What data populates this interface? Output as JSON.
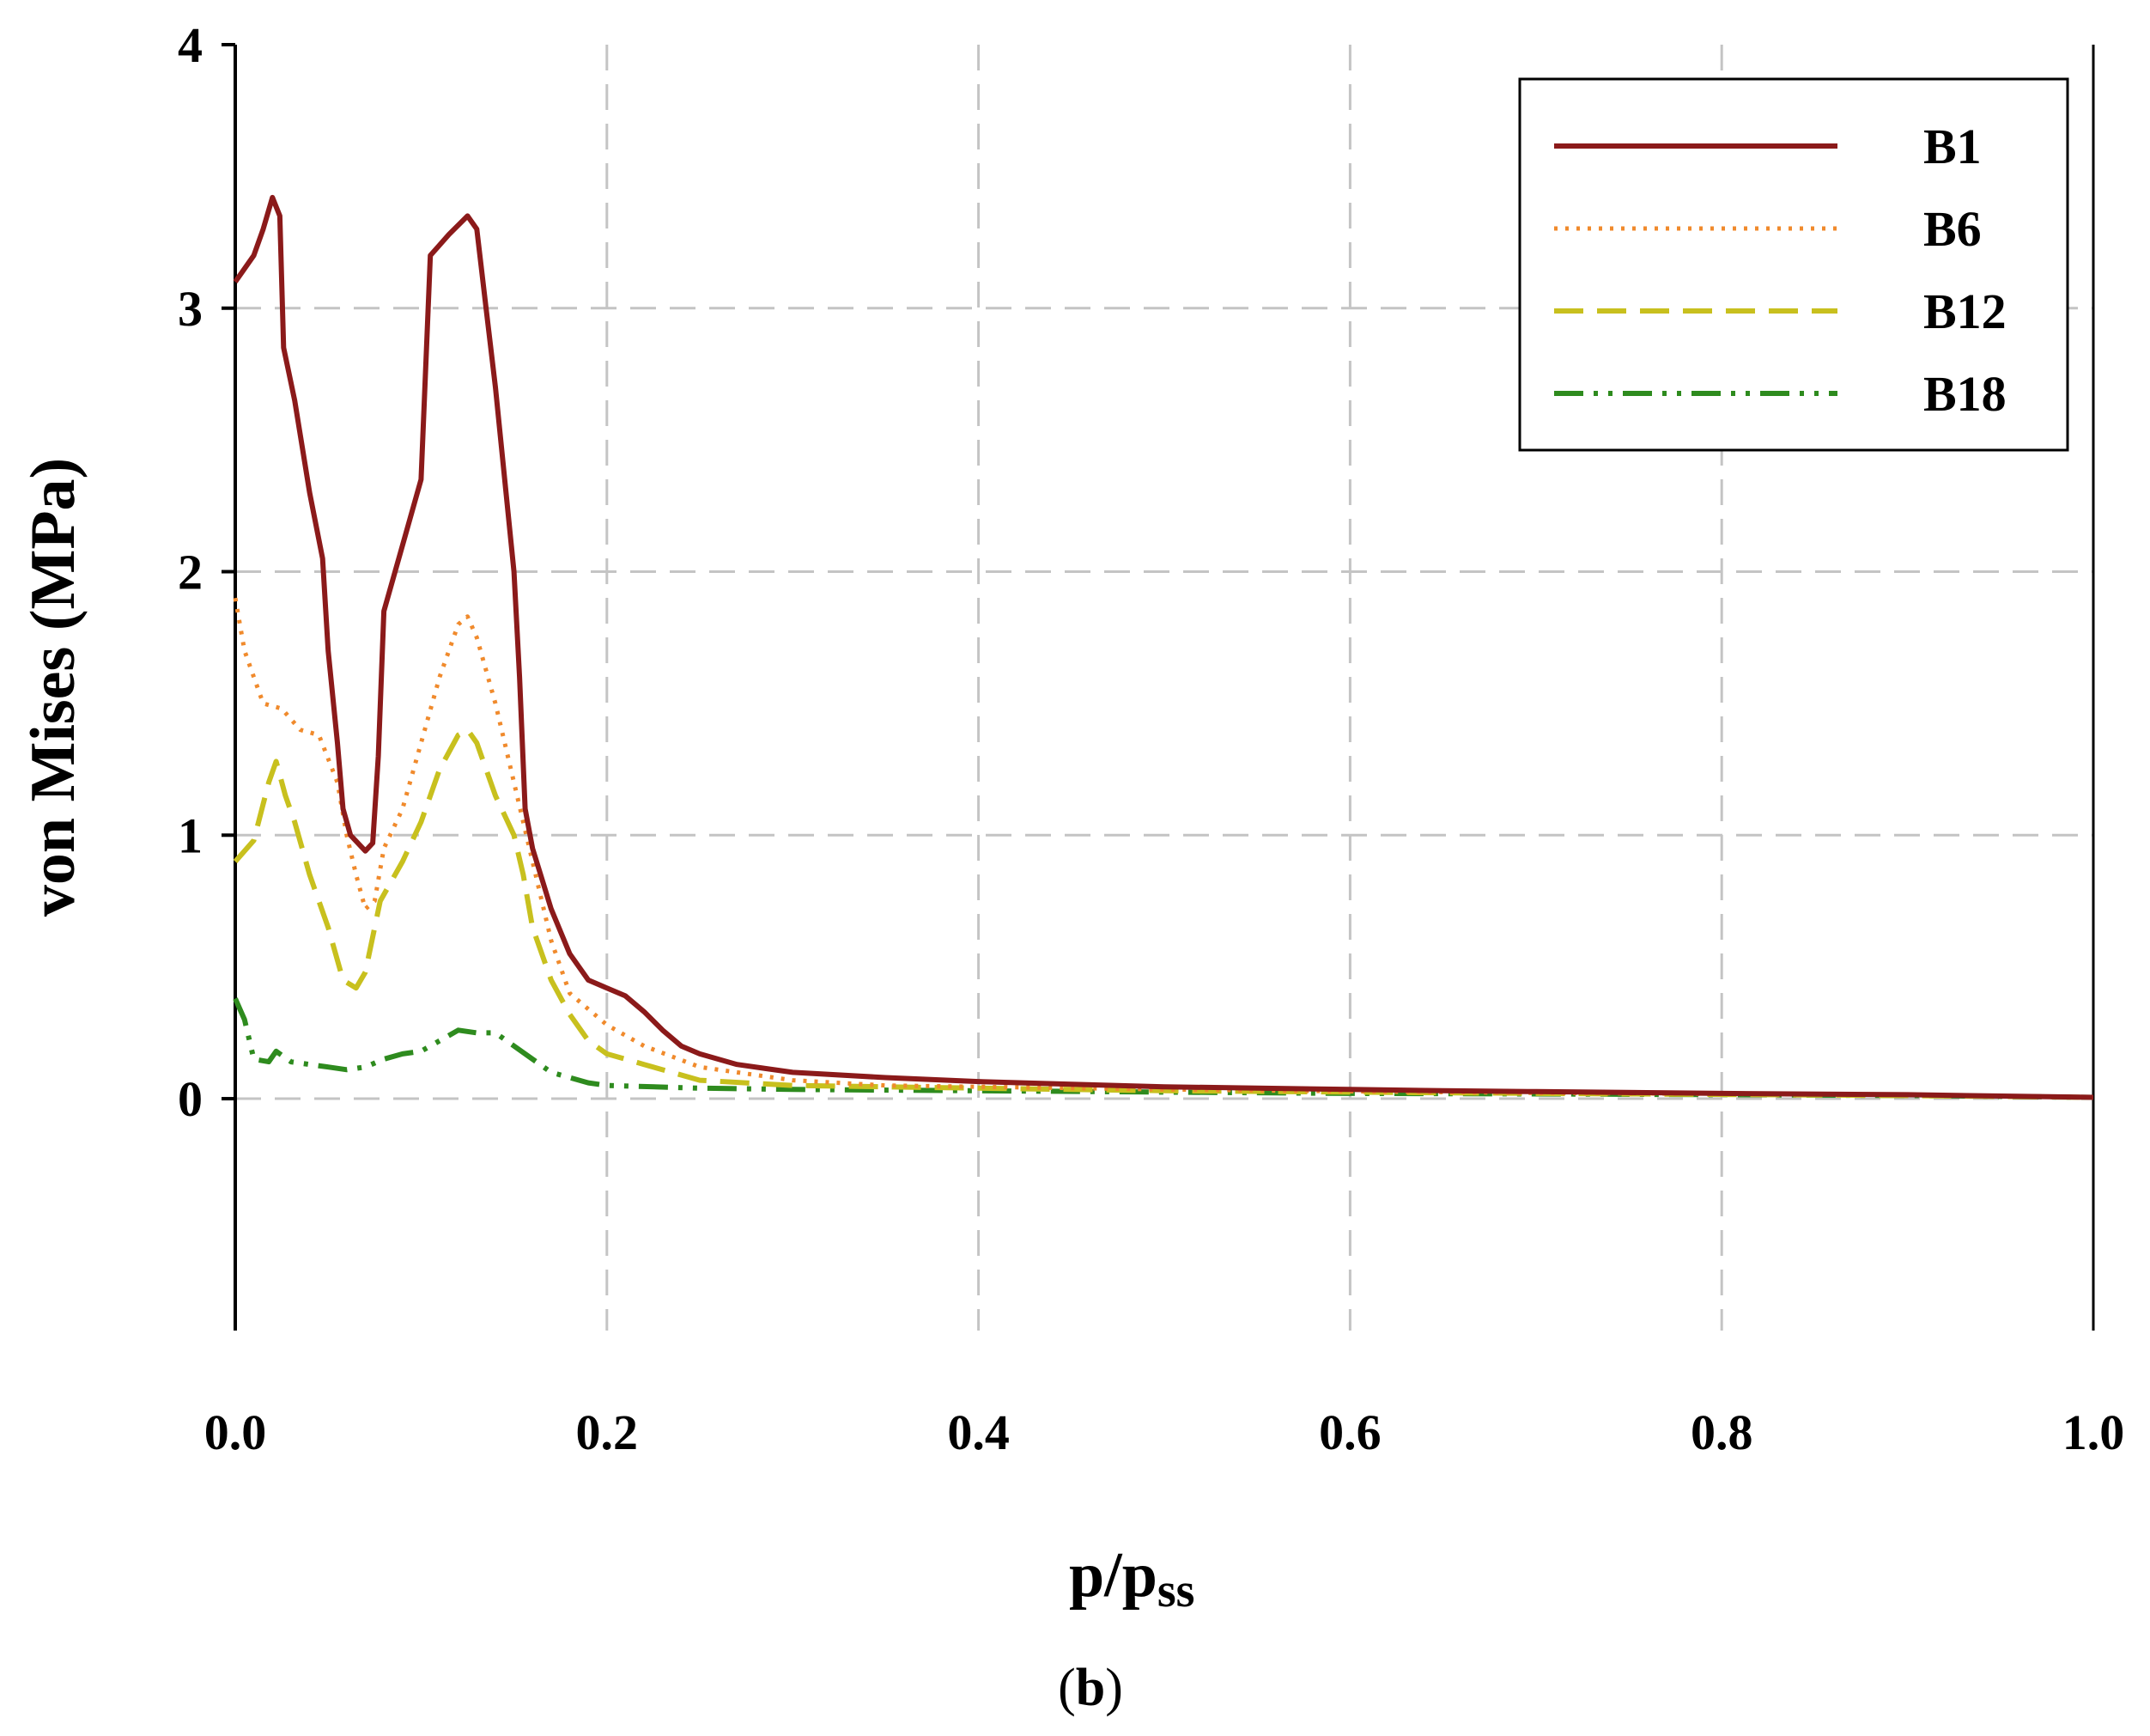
{
  "chart_data": {
    "type": "line",
    "xlabel": "p/p",
    "xlabel_sub": "ss",
    "ylabel": "von Mises (MPa)",
    "xlim": [
      0.0,
      1.0
    ],
    "ylim": [
      -0.88,
      4
    ],
    "x_ticks": [
      0.0,
      0.2,
      0.4,
      0.6,
      0.8,
      1.0
    ],
    "x_tick_labels": [
      "0.0",
      "0.2",
      "0.4",
      "0.6",
      "0.8",
      "1.0"
    ],
    "y_ticks": [
      0,
      1,
      2,
      3,
      4
    ],
    "y_tick_labels": [
      "0",
      "1",
      "2",
      "3",
      "4"
    ],
    "grid": true,
    "legend_position": "top-right",
    "caption_open": "(",
    "caption_letter": "b",
    "caption_close": ")",
    "series": [
      {
        "name": "B1",
        "color": "#8B1A1A",
        "style": "solid",
        "points": [
          [
            0.0,
            3.1
          ],
          [
            0.01,
            3.2
          ],
          [
            0.015,
            3.3
          ],
          [
            0.02,
            3.42
          ],
          [
            0.024,
            3.35
          ],
          [
            0.026,
            2.85
          ],
          [
            0.032,
            2.65
          ],
          [
            0.04,
            2.3
          ],
          [
            0.047,
            2.05
          ],
          [
            0.05,
            1.7
          ],
          [
            0.055,
            1.35
          ],
          [
            0.058,
            1.1
          ],
          [
            0.062,
            1.0
          ],
          [
            0.07,
            0.94
          ],
          [
            0.074,
            0.97
          ],
          [
            0.077,
            1.3
          ],
          [
            0.08,
            1.85
          ],
          [
            0.09,
            2.1
          ],
          [
            0.1,
            2.35
          ],
          [
            0.105,
            3.2
          ],
          [
            0.115,
            3.28
          ],
          [
            0.125,
            3.35
          ],
          [
            0.13,
            3.3
          ],
          [
            0.135,
            3.0
          ],
          [
            0.14,
            2.7
          ],
          [
            0.145,
            2.35
          ],
          [
            0.15,
            2.0
          ],
          [
            0.153,
            1.6
          ],
          [
            0.156,
            1.1
          ],
          [
            0.16,
            0.95
          ],
          [
            0.17,
            0.72
          ],
          [
            0.18,
            0.55
          ],
          [
            0.19,
            0.45
          ],
          [
            0.2,
            0.42
          ],
          [
            0.21,
            0.39
          ],
          [
            0.22,
            0.33
          ],
          [
            0.23,
            0.26
          ],
          [
            0.24,
            0.2
          ],
          [
            0.25,
            0.17
          ],
          [
            0.27,
            0.13
          ],
          [
            0.3,
            0.1
          ],
          [
            0.35,
            0.08
          ],
          [
            0.4,
            0.065
          ],
          [
            0.45,
            0.055
          ],
          [
            0.5,
            0.045
          ],
          [
            0.55,
            0.04
          ],
          [
            0.6,
            0.035
          ],
          [
            0.65,
            0.03
          ],
          [
            0.7,
            0.027
          ],
          [
            0.8,
            0.02
          ],
          [
            0.9,
            0.015
          ],
          [
            1.0,
            0.005
          ]
        ]
      },
      {
        "name": "B6",
        "color": "#F08A2C",
        "style": "dotted",
        "points": [
          [
            0.0,
            1.9
          ],
          [
            0.005,
            1.7
          ],
          [
            0.01,
            1.6
          ],
          [
            0.015,
            1.5
          ],
          [
            0.025,
            1.48
          ],
          [
            0.035,
            1.4
          ],
          [
            0.045,
            1.38
          ],
          [
            0.055,
            1.2
          ],
          [
            0.06,
            1.0
          ],
          [
            0.065,
            0.85
          ],
          [
            0.07,
            0.72
          ],
          [
            0.075,
            0.75
          ],
          [
            0.08,
            0.95
          ],
          [
            0.09,
            1.1
          ],
          [
            0.1,
            1.35
          ],
          [
            0.11,
            1.6
          ],
          [
            0.12,
            1.8
          ],
          [
            0.125,
            1.83
          ],
          [
            0.13,
            1.75
          ],
          [
            0.14,
            1.5
          ],
          [
            0.15,
            1.2
          ],
          [
            0.16,
            0.9
          ],
          [
            0.17,
            0.6
          ],
          [
            0.18,
            0.4
          ],
          [
            0.2,
            0.28
          ],
          [
            0.22,
            0.2
          ],
          [
            0.25,
            0.12
          ],
          [
            0.3,
            0.07
          ],
          [
            0.35,
            0.05
          ],
          [
            0.4,
            0.045
          ],
          [
            0.5,
            0.035
          ],
          [
            0.6,
            0.028
          ],
          [
            0.7,
            0.022
          ],
          [
            0.8,
            0.018
          ],
          [
            0.9,
            0.014
          ],
          [
            1.0,
            0.005
          ]
        ]
      },
      {
        "name": "B12",
        "color": "#C8C01E",
        "style": "dashed",
        "points": [
          [
            0.0,
            0.9
          ],
          [
            0.01,
            0.98
          ],
          [
            0.018,
            1.2
          ],
          [
            0.022,
            1.28
          ],
          [
            0.027,
            1.15
          ],
          [
            0.032,
            1.05
          ],
          [
            0.04,
            0.85
          ],
          [
            0.05,
            0.65
          ],
          [
            0.058,
            0.45
          ],
          [
            0.065,
            0.42
          ],
          [
            0.07,
            0.48
          ],
          [
            0.078,
            0.75
          ],
          [
            0.09,
            0.9
          ],
          [
            0.1,
            1.05
          ],
          [
            0.11,
            1.25
          ],
          [
            0.12,
            1.38
          ],
          [
            0.125,
            1.4
          ],
          [
            0.13,
            1.35
          ],
          [
            0.14,
            1.15
          ],
          [
            0.15,
            1.0
          ],
          [
            0.155,
            0.85
          ],
          [
            0.16,
            0.65
          ],
          [
            0.17,
            0.45
          ],
          [
            0.18,
            0.32
          ],
          [
            0.19,
            0.22
          ],
          [
            0.2,
            0.17
          ],
          [
            0.22,
            0.13
          ],
          [
            0.25,
            0.07
          ],
          [
            0.3,
            0.05
          ],
          [
            0.4,
            0.04
          ],
          [
            0.5,
            0.03
          ],
          [
            0.6,
            0.025
          ],
          [
            0.7,
            0.02
          ],
          [
            0.8,
            0.016
          ],
          [
            0.9,
            0.012
          ],
          [
            1.0,
            0.005
          ]
        ]
      },
      {
        "name": "B18",
        "color": "#2E8B1E",
        "style": "dashdotdot",
        "points": [
          [
            0.0,
            0.38
          ],
          [
            0.005,
            0.3
          ],
          [
            0.01,
            0.15
          ],
          [
            0.018,
            0.14
          ],
          [
            0.022,
            0.18
          ],
          [
            0.03,
            0.14
          ],
          [
            0.04,
            0.13
          ],
          [
            0.05,
            0.12
          ],
          [
            0.06,
            0.11
          ],
          [
            0.07,
            0.12
          ],
          [
            0.08,
            0.15
          ],
          [
            0.09,
            0.17
          ],
          [
            0.1,
            0.18
          ],
          [
            0.11,
            0.22
          ],
          [
            0.12,
            0.26
          ],
          [
            0.13,
            0.25
          ],
          [
            0.14,
            0.25
          ],
          [
            0.15,
            0.2
          ],
          [
            0.16,
            0.15
          ],
          [
            0.17,
            0.1
          ],
          [
            0.18,
            0.08
          ],
          [
            0.19,
            0.06
          ],
          [
            0.2,
            0.05
          ],
          [
            0.25,
            0.04
          ],
          [
            0.3,
            0.035
          ],
          [
            0.4,
            0.03
          ],
          [
            0.5,
            0.025
          ],
          [
            0.6,
            0.02
          ],
          [
            0.7,
            0.018
          ],
          [
            0.8,
            0.015
          ],
          [
            0.9,
            0.012
          ],
          [
            1.0,
            0.005
          ]
        ]
      }
    ]
  }
}
